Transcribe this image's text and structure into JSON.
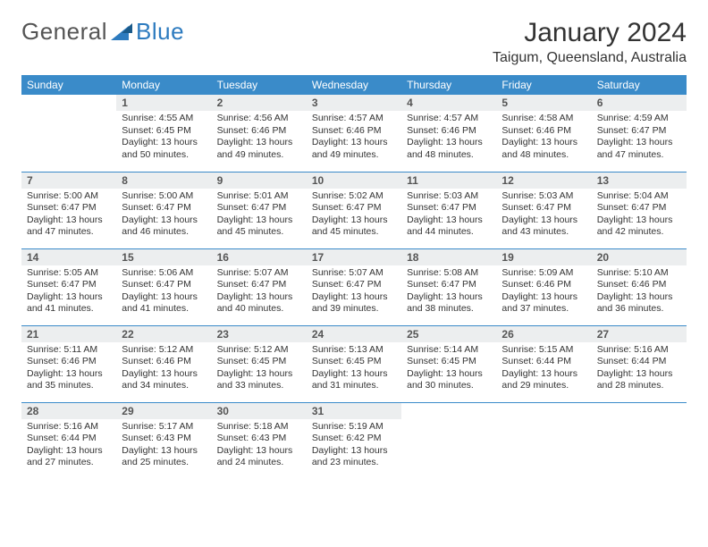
{
  "logo": {
    "text1": "General",
    "text2": "Blue"
  },
  "title": "January 2024",
  "location": "Taigum, Queensland, Australia",
  "colors": {
    "header_bg": "#3a8bc9",
    "header_text": "#ffffff",
    "daynum_bg": "#eceeef",
    "border": "#3a8bc9",
    "logo_gray": "#555555",
    "logo_blue": "#2d7bbf"
  },
  "weekdays": [
    "Sunday",
    "Monday",
    "Tuesday",
    "Wednesday",
    "Thursday",
    "Friday",
    "Saturday"
  ],
  "weeks": [
    [
      null,
      {
        "n": "1",
        "sr": "4:55 AM",
        "ss": "6:45 PM",
        "dh": "13",
        "dm": "50"
      },
      {
        "n": "2",
        "sr": "4:56 AM",
        "ss": "6:46 PM",
        "dh": "13",
        "dm": "49"
      },
      {
        "n": "3",
        "sr": "4:57 AM",
        "ss": "6:46 PM",
        "dh": "13",
        "dm": "49"
      },
      {
        "n": "4",
        "sr": "4:57 AM",
        "ss": "6:46 PM",
        "dh": "13",
        "dm": "48"
      },
      {
        "n": "5",
        "sr": "4:58 AM",
        "ss": "6:46 PM",
        "dh": "13",
        "dm": "48"
      },
      {
        "n": "6",
        "sr": "4:59 AM",
        "ss": "6:47 PM",
        "dh": "13",
        "dm": "47"
      }
    ],
    [
      {
        "n": "7",
        "sr": "5:00 AM",
        "ss": "6:47 PM",
        "dh": "13",
        "dm": "47"
      },
      {
        "n": "8",
        "sr": "5:00 AM",
        "ss": "6:47 PM",
        "dh": "13",
        "dm": "46"
      },
      {
        "n": "9",
        "sr": "5:01 AM",
        "ss": "6:47 PM",
        "dh": "13",
        "dm": "45"
      },
      {
        "n": "10",
        "sr": "5:02 AM",
        "ss": "6:47 PM",
        "dh": "13",
        "dm": "45"
      },
      {
        "n": "11",
        "sr": "5:03 AM",
        "ss": "6:47 PM",
        "dh": "13",
        "dm": "44"
      },
      {
        "n": "12",
        "sr": "5:03 AM",
        "ss": "6:47 PM",
        "dh": "13",
        "dm": "43"
      },
      {
        "n": "13",
        "sr": "5:04 AM",
        "ss": "6:47 PM",
        "dh": "13",
        "dm": "42"
      }
    ],
    [
      {
        "n": "14",
        "sr": "5:05 AM",
        "ss": "6:47 PM",
        "dh": "13",
        "dm": "41"
      },
      {
        "n": "15",
        "sr": "5:06 AM",
        "ss": "6:47 PM",
        "dh": "13",
        "dm": "41"
      },
      {
        "n": "16",
        "sr": "5:07 AM",
        "ss": "6:47 PM",
        "dh": "13",
        "dm": "40"
      },
      {
        "n": "17",
        "sr": "5:07 AM",
        "ss": "6:47 PM",
        "dh": "13",
        "dm": "39"
      },
      {
        "n": "18",
        "sr": "5:08 AM",
        "ss": "6:47 PM",
        "dh": "13",
        "dm": "38"
      },
      {
        "n": "19",
        "sr": "5:09 AM",
        "ss": "6:46 PM",
        "dh": "13",
        "dm": "37"
      },
      {
        "n": "20",
        "sr": "5:10 AM",
        "ss": "6:46 PM",
        "dh": "13",
        "dm": "36"
      }
    ],
    [
      {
        "n": "21",
        "sr": "5:11 AM",
        "ss": "6:46 PM",
        "dh": "13",
        "dm": "35"
      },
      {
        "n": "22",
        "sr": "5:12 AM",
        "ss": "6:46 PM",
        "dh": "13",
        "dm": "34"
      },
      {
        "n": "23",
        "sr": "5:12 AM",
        "ss": "6:45 PM",
        "dh": "13",
        "dm": "33"
      },
      {
        "n": "24",
        "sr": "5:13 AM",
        "ss": "6:45 PM",
        "dh": "13",
        "dm": "31"
      },
      {
        "n": "25",
        "sr": "5:14 AM",
        "ss": "6:45 PM",
        "dh": "13",
        "dm": "30"
      },
      {
        "n": "26",
        "sr": "5:15 AM",
        "ss": "6:44 PM",
        "dh": "13",
        "dm": "29"
      },
      {
        "n": "27",
        "sr": "5:16 AM",
        "ss": "6:44 PM",
        "dh": "13",
        "dm": "28"
      }
    ],
    [
      {
        "n": "28",
        "sr": "5:16 AM",
        "ss": "6:44 PM",
        "dh": "13",
        "dm": "27"
      },
      {
        "n": "29",
        "sr": "5:17 AM",
        "ss": "6:43 PM",
        "dh": "13",
        "dm": "25"
      },
      {
        "n": "30",
        "sr": "5:18 AM",
        "ss": "6:43 PM",
        "dh": "13",
        "dm": "24"
      },
      {
        "n": "31",
        "sr": "5:19 AM",
        "ss": "6:42 PM",
        "dh": "13",
        "dm": "23"
      },
      null,
      null,
      null
    ]
  ],
  "labels": {
    "sunrise": "Sunrise:",
    "sunset": "Sunset:",
    "daylight": "Daylight:",
    "hours": "hours",
    "and": "and",
    "minutes": "minutes."
  }
}
